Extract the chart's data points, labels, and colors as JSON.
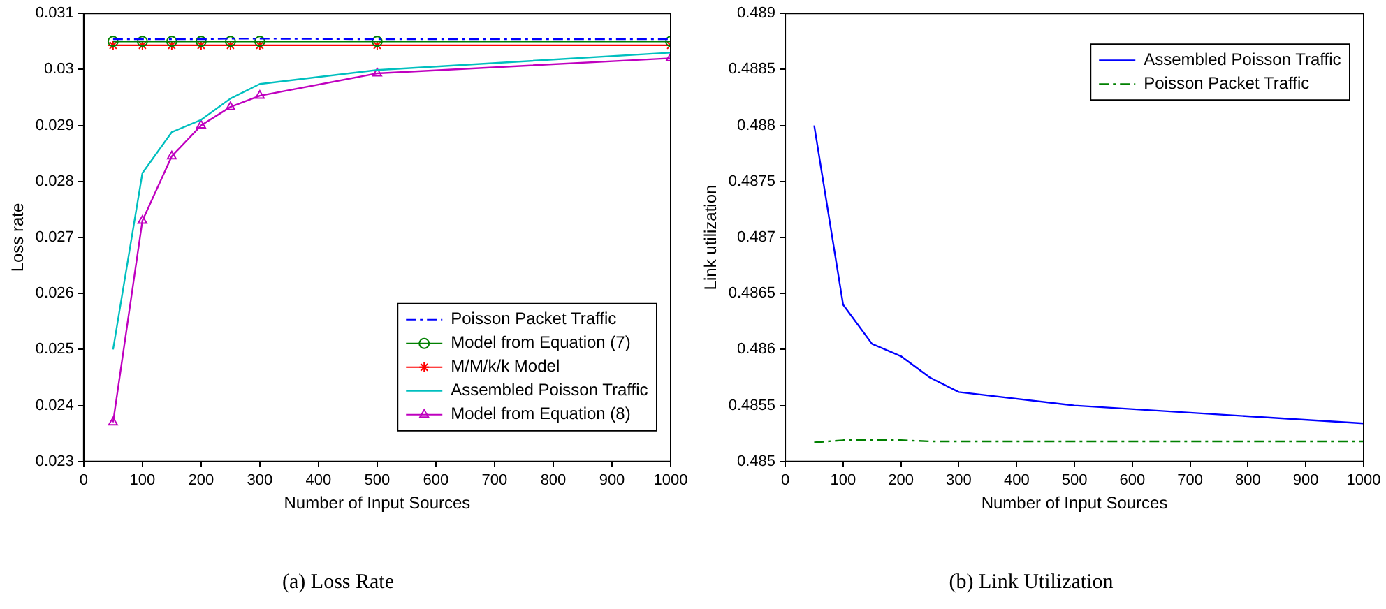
{
  "chart_data": [
    {
      "type": "line",
      "title": "(a) Loss Rate",
      "xlabel": "Number of Input Sources",
      "ylabel": "Loss rate",
      "x": [
        50,
        100,
        150,
        200,
        250,
        300,
        500,
        1000
      ],
      "xlim": [
        0,
        1000
      ],
      "xticks": [
        0,
        100,
        200,
        300,
        400,
        500,
        600,
        700,
        800,
        900,
        1000
      ],
      "ylim": [
        0.023,
        0.031
      ],
      "yticks": [
        0.023,
        0.024,
        0.025,
        0.026,
        0.027,
        0.028,
        0.029,
        0.03,
        0.031
      ],
      "grid": false,
      "legend": "bottom right",
      "series": [
        {
          "name": "Poisson Packet Traffic",
          "color": "#0000ff",
          "line_style": "dashed",
          "marker": "none",
          "values": [
            0.03054,
            0.03054,
            0.03054,
            0.03054,
            0.03055,
            0.03055,
            0.03054,
            0.03054
          ]
        },
        {
          "name": "Model from Equation (7)",
          "color": "#008000",
          "line_style": "solid",
          "marker": "circle",
          "values": [
            0.0305,
            0.0305,
            0.0305,
            0.0305,
            0.0305,
            0.0305,
            0.0305,
            0.0305
          ]
        },
        {
          "name": "M/M/k/k Model",
          "color": "#ff0000",
          "line_style": "solid",
          "marker": "cross",
          "values": [
            0.03043,
            0.03043,
            0.03043,
            0.03043,
            0.03043,
            0.03043,
            0.03043,
            0.03043
          ]
        },
        {
          "name": "Assembled Poisson Traffic",
          "color": "#00bfbf",
          "line_style": "solid",
          "marker": "none",
          "values": [
            0.025,
            0.02815,
            0.02888,
            0.0291,
            0.02948,
            0.02974,
            0.02999,
            0.0303
          ]
        },
        {
          "name": "Model from Equation (8)",
          "color": "#bf00bf",
          "line_style": "solid",
          "marker": "triangle",
          "values": [
            0.0237,
            0.0273,
            0.02845,
            0.029,
            0.02933,
            0.02953,
            0.02993,
            0.0302
          ]
        }
      ]
    },
    {
      "type": "line",
      "title": "(b) Link Utilization",
      "xlabel": "Number of Input Sources",
      "ylabel": "Link utilization",
      "x": [
        50,
        100,
        150,
        200,
        250,
        300,
        500,
        1000
      ],
      "xlim": [
        0,
        1000
      ],
      "xticks": [
        0,
        100,
        200,
        300,
        400,
        500,
        600,
        700,
        800,
        900,
        1000
      ],
      "ylim": [
        0.485,
        0.489
      ],
      "yticks": [
        0.485,
        0.4855,
        0.486,
        0.4865,
        0.487,
        0.4875,
        0.488,
        0.4885,
        0.489
      ],
      "grid": false,
      "legend": "top right",
      "series": [
        {
          "name": "Assembled Poisson Traffic",
          "color": "#0000ff",
          "line_style": "solid",
          "marker": "none",
          "values": [
            0.488,
            0.4864,
            0.48605,
            0.48594,
            0.48575,
            0.48562,
            0.4855,
            0.48534
          ]
        },
        {
          "name": "Poisson Packet Traffic",
          "color": "#008000",
          "line_style": "dashed",
          "marker": "none",
          "values": [
            0.48517,
            0.48519,
            0.48519,
            0.48519,
            0.48518,
            0.48518,
            0.48518,
            0.48518
          ]
        }
      ]
    }
  ]
}
